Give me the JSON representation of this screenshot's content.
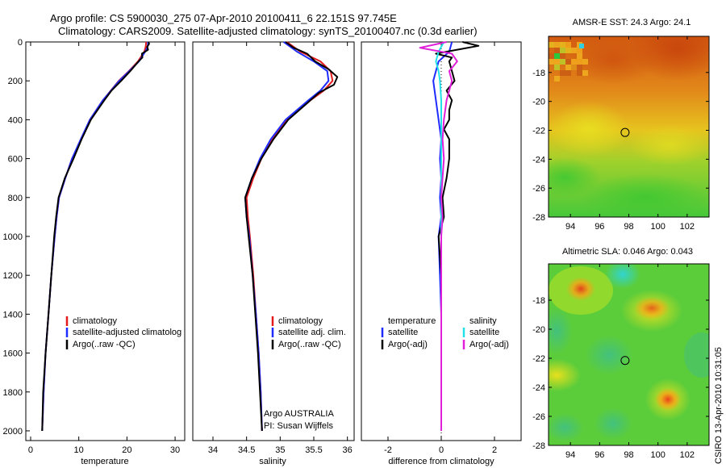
{
  "figure": {
    "title_line1": "Argo profile: CS 5900030_275 07-Apr-2010 20100411_6 22.151S 97.745E",
    "title_line2": "Climatology: CARS2009. Satellite-adjusted climatology: synTS_20100407.nc (0.3d earlier)",
    "credit": "CSIRO 13-Apr-2010 10:31:05",
    "argo_org": "Argo AUSTRALIA",
    "argo_pi": "PI: Susan Wijffels"
  },
  "colors": {
    "climatology": "#e41a1c",
    "satellite": "#1f2cff",
    "argo": "#000000",
    "satellite_salinity": "#22e0e8",
    "argo_salinity": "#e020d8"
  },
  "chart_data": [
    {
      "type": "line",
      "panel": "temperature",
      "xlabel": "temperature",
      "ylabel": "",
      "xlim": [
        -1,
        32
      ],
      "ylim": [
        2050,
        0
      ],
      "yreversed": true,
      "xticks": [
        0,
        10,
        20,
        30
      ],
      "yticks": [
        0,
        200,
        400,
        600,
        800,
        1000,
        1200,
        1400,
        1600,
        1800,
        2000
      ],
      "legend": [
        "climatology",
        "satellite-adjusted climatolog",
        "Argo(..raw -QC)"
      ],
      "series": [
        {
          "name": "climatology",
          "color_key": "climatology",
          "depth": [
            0,
            25,
            50,
            100,
            150,
            200,
            300,
            400,
            500,
            600,
            700,
            800,
            900,
            1000,
            1200,
            1400,
            1600,
            1800,
            2000
          ],
          "values": [
            24.0,
            23.9,
            23.6,
            22.3,
            20.4,
            18.3,
            15.0,
            12.3,
            10.5,
            8.6,
            7.2,
            5.9,
            5.4,
            5.0,
            4.3,
            3.7,
            3.1,
            2.7,
            2.4
          ]
        },
        {
          "name": "satellite-adjusted climatology",
          "color_key": "satellite",
          "depth": [
            0,
            25,
            50,
            100,
            150,
            200,
            300,
            400,
            500,
            600,
            700,
            800,
            900,
            1000,
            1200,
            1400,
            1600,
            1800,
            2000
          ],
          "values": [
            24.4,
            24.3,
            23.8,
            22.5,
            20.5,
            18.4,
            15.0,
            12.3,
            10.4,
            8.6,
            7.2,
            5.9,
            5.4,
            5.0,
            4.3,
            3.7,
            3.1,
            2.7,
            2.4
          ]
        },
        {
          "name": "Argo(..raw -QC)",
          "color_key": "argo",
          "depth": [
            0,
            10,
            25,
            40,
            60,
            80,
            100,
            150,
            200,
            250,
            300,
            400,
            500,
            600,
            700,
            800,
            900,
            1000,
            1200,
            1400,
            1600,
            1800,
            2000
          ],
          "values": [
            24.5,
            24.6,
            24.2,
            24.4,
            23.1,
            23.2,
            22.4,
            20.7,
            18.8,
            16.8,
            15.3,
            12.5,
            10.6,
            8.9,
            7.1,
            5.8,
            5.3,
            4.9,
            4.3,
            3.7,
            3.1,
            2.6,
            2.4
          ]
        }
      ]
    },
    {
      "type": "line",
      "panel": "salinity",
      "xlabel": "salinity",
      "ylabel": "",
      "xlim": [
        33.7,
        36.1
      ],
      "ylim": [
        2050,
        0
      ],
      "yreversed": true,
      "xticks": [
        34,
        34.5,
        35,
        35.5,
        36
      ],
      "legend": [
        "climatology",
        "satellite adj. clim.",
        "Argo(..raw -QC)"
      ],
      "series": [
        {
          "name": "climatology",
          "color_key": "climatology",
          "depth": [
            0,
            50,
            100,
            150,
            200,
            250,
            300,
            400,
            500,
            600,
            700,
            800,
            900,
            1000,
            1200,
            1400,
            1600,
            1800,
            2000
          ],
          "values": [
            35.1,
            35.3,
            35.6,
            35.75,
            35.78,
            35.65,
            35.45,
            35.1,
            34.88,
            34.72,
            34.6,
            34.5,
            34.52,
            34.55,
            34.6,
            34.64,
            34.68,
            34.71,
            34.73
          ]
        },
        {
          "name": "satellite adj. clim.",
          "color_key": "satellite",
          "depth": [
            0,
            50,
            100,
            150,
            200,
            250,
            300,
            400,
            500,
            600,
            700,
            800,
            900,
            1000,
            1200,
            1400,
            1600,
            1800,
            2000
          ],
          "values": [
            35.05,
            35.25,
            35.5,
            35.7,
            35.72,
            35.6,
            35.42,
            35.08,
            34.86,
            34.7,
            34.58,
            34.48,
            34.5,
            34.54,
            34.59,
            34.64,
            34.68,
            34.71,
            34.73
          ]
        },
        {
          "name": "Argo(..raw -QC)",
          "color_key": "argo",
          "depth": [
            0,
            30,
            60,
            100,
            140,
            180,
            220,
            260,
            300,
            400,
            500,
            600,
            700,
            800,
            900,
            1000,
            1200,
            1400,
            1600,
            1800,
            2000
          ],
          "values": [
            35.08,
            35.2,
            35.4,
            35.52,
            35.72,
            35.85,
            35.8,
            35.58,
            35.45,
            35.12,
            34.9,
            34.72,
            34.58,
            34.48,
            34.5,
            34.53,
            34.59,
            34.63,
            34.67,
            34.7,
            34.73
          ]
        }
      ]
    },
    {
      "type": "line",
      "panel": "difference",
      "xlabel": "difference from climatology",
      "ylabel": "",
      "xlim": [
        -3,
        3
      ],
      "ylim": [
        2050,
        0
      ],
      "yreversed": true,
      "xticks": [
        -2,
        0,
        2
      ],
      "legend_temperature_header": "temperature",
      "legend_salinity_header": "salinity",
      "legend": [
        "satellite",
        "Argo(-adj)",
        "satellite",
        "Argo(-adj)"
      ],
      "series": [
        {
          "name": "temperature satellite",
          "color_key": "satellite",
          "depth": [
            0,
            50,
            100,
            150,
            200,
            300,
            400,
            500,
            600,
            700,
            800,
            900,
            1000,
            1200,
            1400,
            1600,
            1800,
            2000
          ],
          "values": [
            0.4,
            0.3,
            -0.1,
            -0.2,
            -0.3,
            -0.2,
            -0.1,
            0.0,
            -0.05,
            0.0,
            -0.05,
            0.0,
            -0.1,
            -0.05,
            0.0,
            0.0,
            0.0,
            0.0
          ]
        },
        {
          "name": "temperature Argo(-adj)",
          "color_key": "argo",
          "depth": [
            0,
            20,
            40,
            60,
            80,
            100,
            150,
            200,
            250,
            300,
            350,
            400,
            450,
            500,
            600,
            700,
            800,
            900,
            1000,
            1200,
            1400,
            1600,
            1800,
            2000
          ],
          "values": [
            0.8,
            1.4,
            0.6,
            -0.2,
            0.4,
            0.3,
            0.4,
            0.5,
            0.2,
            0.4,
            0.3,
            0.3,
            0.1,
            0.3,
            0.3,
            0.2,
            0.05,
            0.1,
            -0.1,
            0.0,
            0.0,
            0.0,
            0.0,
            0.0
          ]
        },
        {
          "name": "salinity satellite",
          "color_key": "satellite_salinity",
          "depth": [
            0,
            50,
            100,
            150,
            200,
            300,
            400,
            600,
            800,
            1000,
            1200,
            1400,
            1600,
            1800,
            2000
          ],
          "values": [
            0.1,
            -0.1,
            -0.2,
            -0.1,
            -0.05,
            0.0,
            0.0,
            0.0,
            0.0,
            0.0,
            0.0,
            0.0,
            0.0,
            0.0,
            0.0
          ]
        },
        {
          "name": "salinity Argo(-adj)",
          "color_key": "argo_salinity",
          "depth": [
            0,
            30,
            60,
            100,
            150,
            200,
            300,
            400,
            500,
            600,
            700,
            800,
            900,
            1000,
            1200,
            1400,
            1600,
            1800,
            2000
          ],
          "values": [
            0.2,
            -0.8,
            0.4,
            0.6,
            0.3,
            0.4,
            0.2,
            0.1,
            0.05,
            0.1,
            0.05,
            0.0,
            0.05,
            0.0,
            0.0,
            0.0,
            0.0,
            0.0,
            0.0
          ]
        }
      ]
    },
    {
      "type": "heatmap",
      "panel": "sst-map",
      "title": "AMSR-E SST: 24.3 Argo: 24.1",
      "xlim": [
        92.5,
        103.5
      ],
      "ylim": [
        -28,
        -15.5
      ],
      "xticks": [
        94,
        96,
        98,
        100,
        102
      ],
      "yticks": [
        -18,
        -20,
        -22,
        -24,
        -26,
        -28
      ],
      "marker": {
        "lon": 97.745,
        "lat": -22.151
      }
    },
    {
      "type": "heatmap",
      "panel": "sla-map",
      "title": "Altimetric SLA: 0.046 Argo: 0.043",
      "xlim": [
        92.5,
        103.5
      ],
      "ylim": [
        -28,
        -15.5
      ],
      "xticks": [
        94,
        96,
        98,
        100,
        102
      ],
      "yticks": [
        -18,
        -20,
        -22,
        -24,
        -26,
        -28
      ],
      "marker": {
        "lon": 97.745,
        "lat": -22.151
      }
    }
  ]
}
